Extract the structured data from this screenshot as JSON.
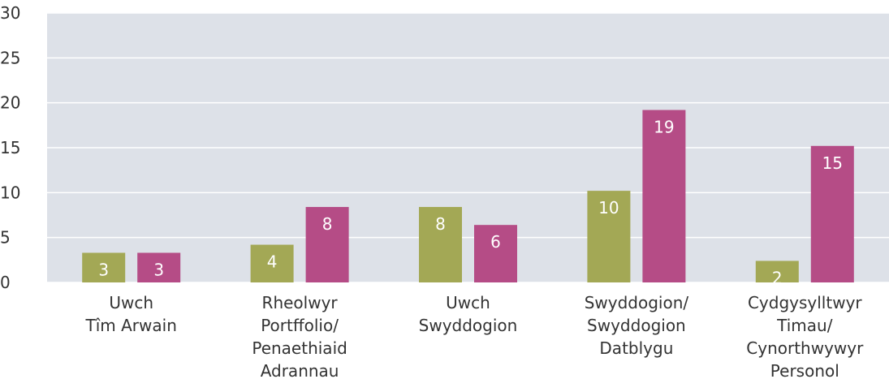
{
  "chart_data": {
    "type": "bar",
    "categories": [
      "Uwch\nTîm Arwain",
      "Rheolwyr\nPortffolio/\nPenaethiaid\nAdrannau",
      "Uwch\nSwyddogion",
      "Swyddogion/\nSwyddogion\nDatblygu",
      "Cydgysylltwyr\nTimau/\nCynorthwywyr\nPersonol"
    ],
    "series": [
      {
        "color": "#a3a855",
        "values": [
          3.3,
          4.2,
          8.4,
          10.2,
          2.4
        ],
        "value_labels": [
          "3",
          "4",
          "8",
          "10",
          "2"
        ]
      },
      {
        "color": "#b54c86",
        "values": [
          3.3,
          8.4,
          6.4,
          19.2,
          15.2
        ],
        "value_labels": [
          "3",
          "8",
          "6",
          "19",
          "15"
        ]
      }
    ],
    "ylim": [
      0,
      30
    ],
    "yticks": [
      0,
      5,
      10,
      15,
      20,
      25,
      30
    ],
    "grid": true,
    "plot_background": "#dde1e8"
  }
}
